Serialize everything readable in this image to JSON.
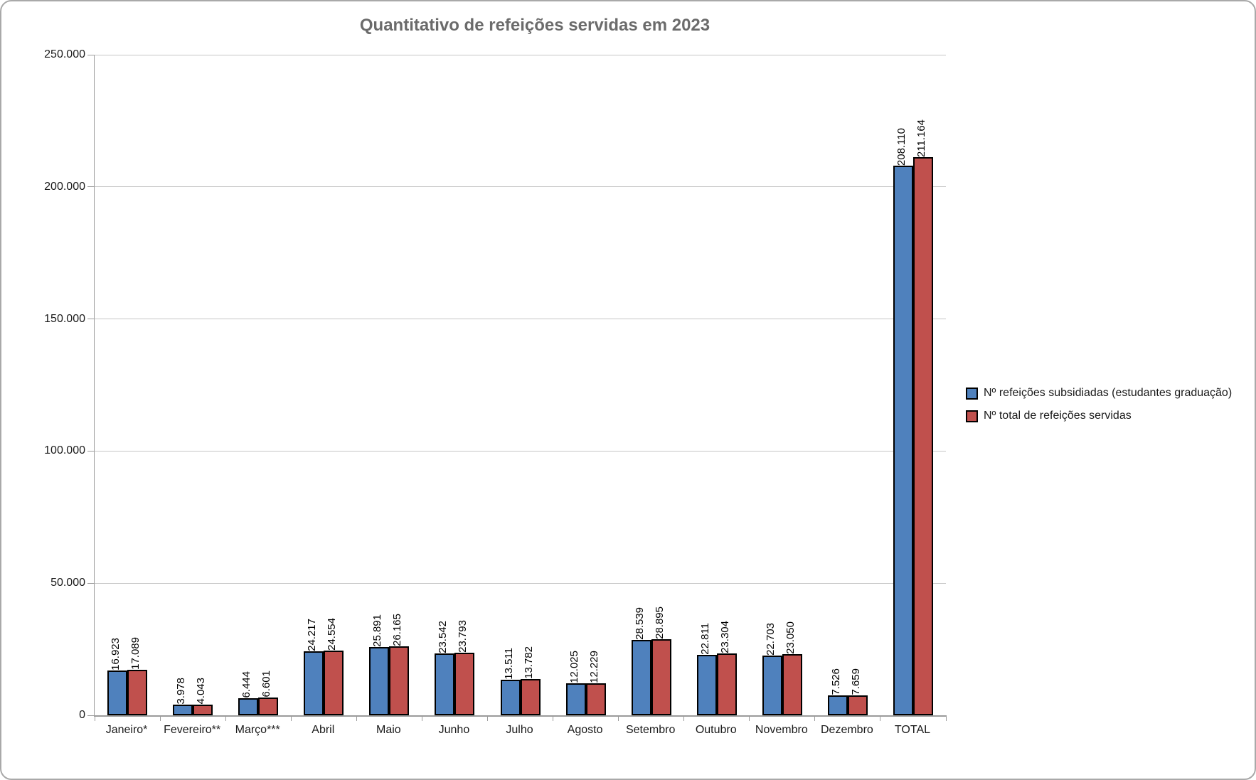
{
  "title": "Quantitativo de refeições servidas em 2023",
  "colors": {
    "series1": "#4F81BD",
    "series2": "#C0504D",
    "bar_border": "#000000",
    "gridline": "#C6C6C6",
    "axis": "#9B9B9B",
    "title_text": "#6B6B6B",
    "label_text": "#000000",
    "chart_border": "#A9A9A9"
  },
  "chart_data": {
    "type": "bar",
    "title": "Quantitativo de refeições servidas em 2023",
    "categories": [
      "Janeiro*",
      "Fevereiro**",
      "Março***",
      "Abril",
      "Maio",
      "Junho",
      "Julho",
      "Agosto",
      "Setembro",
      "Outubro",
      "Novembro",
      "Dezembro",
      "TOTAL"
    ],
    "series": [
      {
        "name": "Nº refeições subsidiadas (estudantes graduação)",
        "color": "#4F81BD",
        "values": [
          16923,
          3978,
          6444,
          24217,
          25891,
          23542,
          13511,
          12025,
          28539,
          22811,
          22703,
          7526,
          208110
        ],
        "labels": [
          "16.923",
          "3.978",
          "6.444",
          "24.217",
          "25.891",
          "23.542",
          "13.511",
          "12.025",
          "28.539",
          "22.811",
          "22.703",
          "7.526",
          "208.110"
        ]
      },
      {
        "name": "Nº total de refeições servidas",
        "color": "#C0504D",
        "values": [
          17089,
          4043,
          6601,
          24554,
          26165,
          23793,
          13782,
          12229,
          28895,
          23304,
          23050,
          7659,
          211164
        ],
        "labels": [
          "17.089",
          "4.043",
          "6.601",
          "24.554",
          "26.165",
          "23.793",
          "13.782",
          "12.229",
          "28.895",
          "23.304",
          "23.050",
          "7.659",
          "211.164"
        ]
      }
    ],
    "xlabel": "",
    "ylabel": "",
    "ylim": [
      0,
      250000
    ],
    "ytick_step": 50000,
    "ytick_labels": [
      "0",
      "50.000",
      "100.000",
      "150.000",
      "200.000",
      "250.000"
    ],
    "grid": true,
    "data_labels_rotation": 90,
    "legend_position": "right"
  }
}
